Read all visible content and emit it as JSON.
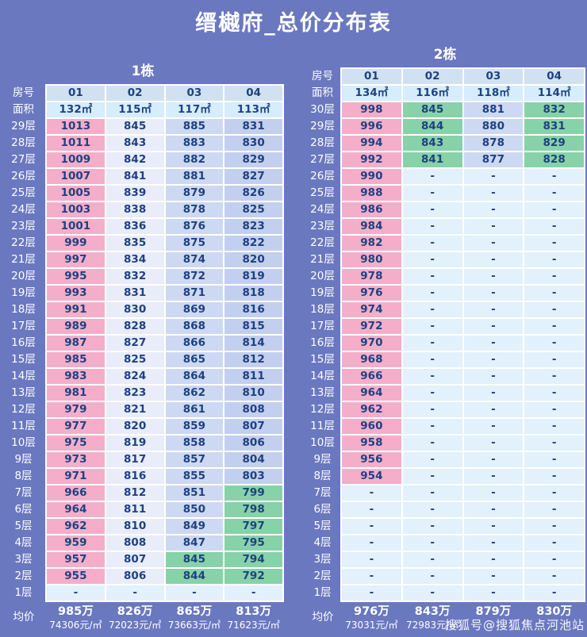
{
  "page": {
    "title": "缙樾府_总价分布表",
    "watermark": "搜狐号@搜狐焦点河池站"
  },
  "labels": {
    "room": "房号",
    "area": "面积",
    "avg": "均价"
  },
  "ui_colors": {
    "background": "#6a78c0",
    "header_cell": "#d0e1f1",
    "area_cell": "#d5edfc",
    "cell_text": "#1e4180",
    "label_text": "#ffffff",
    "grid_line": "#ffffff"
  },
  "cell_colors": {
    "p": "#f4aeca",
    "w": "#e9ecf9",
    "b": "#cdd8f2",
    "d": "#c3cfee",
    "g": "#87d2a8",
    "e": "#e2f1fb"
  },
  "chart_data": [
    {
      "type": "table",
      "title": "1栋",
      "units": [
        "01",
        "02",
        "03",
        "04"
      ],
      "areas": [
        "132㎡",
        "115㎡",
        "117㎡",
        "113㎡"
      ],
      "floors": [
        {
          "floor": "29层",
          "values": [
            "1013",
            "845",
            "885",
            "831"
          ],
          "colors": [
            "p",
            "w",
            "b",
            "d"
          ]
        },
        {
          "floor": "28层",
          "values": [
            "1011",
            "843",
            "883",
            "830"
          ],
          "colors": [
            "p",
            "w",
            "b",
            "d"
          ]
        },
        {
          "floor": "27层",
          "values": [
            "1009",
            "842",
            "882",
            "829"
          ],
          "colors": [
            "p",
            "w",
            "b",
            "d"
          ]
        },
        {
          "floor": "26层",
          "values": [
            "1007",
            "841",
            "881",
            "827"
          ],
          "colors": [
            "p",
            "w",
            "b",
            "d"
          ]
        },
        {
          "floor": "25层",
          "values": [
            "1005",
            "839",
            "879",
            "826"
          ],
          "colors": [
            "p",
            "w",
            "b",
            "d"
          ]
        },
        {
          "floor": "24层",
          "values": [
            "1003",
            "838",
            "878",
            "825"
          ],
          "colors": [
            "p",
            "w",
            "b",
            "d"
          ]
        },
        {
          "floor": "23层",
          "values": [
            "1001",
            "836",
            "876",
            "823"
          ],
          "colors": [
            "p",
            "w",
            "b",
            "d"
          ]
        },
        {
          "floor": "22层",
          "values": [
            "999",
            "835",
            "875",
            "822"
          ],
          "colors": [
            "p",
            "w",
            "b",
            "d"
          ]
        },
        {
          "floor": "21层",
          "values": [
            "997",
            "834",
            "874",
            "820"
          ],
          "colors": [
            "p",
            "w",
            "b",
            "d"
          ]
        },
        {
          "floor": "20层",
          "values": [
            "995",
            "832",
            "872",
            "819"
          ],
          "colors": [
            "p",
            "w",
            "b",
            "d"
          ]
        },
        {
          "floor": "19层",
          "values": [
            "993",
            "831",
            "871",
            "818"
          ],
          "colors": [
            "p",
            "w",
            "b",
            "d"
          ]
        },
        {
          "floor": "18层",
          "values": [
            "991",
            "830",
            "869",
            "816"
          ],
          "colors": [
            "p",
            "w",
            "b",
            "d"
          ]
        },
        {
          "floor": "17层",
          "values": [
            "989",
            "828",
            "868",
            "815"
          ],
          "colors": [
            "p",
            "w",
            "b",
            "d"
          ]
        },
        {
          "floor": "16层",
          "values": [
            "987",
            "827",
            "866",
            "814"
          ],
          "colors": [
            "p",
            "w",
            "b",
            "d"
          ]
        },
        {
          "floor": "15层",
          "values": [
            "985",
            "825",
            "865",
            "812"
          ],
          "colors": [
            "p",
            "w",
            "b",
            "d"
          ]
        },
        {
          "floor": "14层",
          "values": [
            "983",
            "824",
            "864",
            "811"
          ],
          "colors": [
            "p",
            "w",
            "b",
            "d"
          ]
        },
        {
          "floor": "13层",
          "values": [
            "981",
            "823",
            "862",
            "810"
          ],
          "colors": [
            "p",
            "w",
            "b",
            "d"
          ]
        },
        {
          "floor": "12层",
          "values": [
            "979",
            "821",
            "861",
            "808"
          ],
          "colors": [
            "p",
            "w",
            "b",
            "d"
          ]
        },
        {
          "floor": "11层",
          "values": [
            "977",
            "820",
            "859",
            "807"
          ],
          "colors": [
            "p",
            "w",
            "b",
            "d"
          ]
        },
        {
          "floor": "10层",
          "values": [
            "975",
            "819",
            "858",
            "806"
          ],
          "colors": [
            "p",
            "w",
            "b",
            "d"
          ]
        },
        {
          "floor": "9层",
          "values": [
            "973",
            "817",
            "857",
            "804"
          ],
          "colors": [
            "p",
            "w",
            "b",
            "d"
          ]
        },
        {
          "floor": "8层",
          "values": [
            "971",
            "816",
            "855",
            "803"
          ],
          "colors": [
            "p",
            "w",
            "b",
            "d"
          ]
        },
        {
          "floor": "7层",
          "values": [
            "966",
            "812",
            "851",
            "799"
          ],
          "colors": [
            "p",
            "w",
            "b",
            "g"
          ]
        },
        {
          "floor": "6层",
          "values": [
            "964",
            "811",
            "850",
            "798"
          ],
          "colors": [
            "p",
            "w",
            "b",
            "g"
          ]
        },
        {
          "floor": "5层",
          "values": [
            "962",
            "810",
            "849",
            "797"
          ],
          "colors": [
            "p",
            "w",
            "b",
            "g"
          ]
        },
        {
          "floor": "4层",
          "values": [
            "959",
            "808",
            "847",
            "795"
          ],
          "colors": [
            "p",
            "w",
            "b",
            "g"
          ]
        },
        {
          "floor": "3层",
          "values": [
            "957",
            "807",
            "845",
            "794"
          ],
          "colors": [
            "p",
            "w",
            "g",
            "g"
          ]
        },
        {
          "floor": "2层",
          "values": [
            "955",
            "806",
            "844",
            "792"
          ],
          "colors": [
            "p",
            "w",
            "g",
            "g"
          ]
        },
        {
          "floor": "1层",
          "values": [
            "-",
            "-",
            "-",
            "-"
          ],
          "colors": [
            "e",
            "e",
            "e",
            "e"
          ]
        }
      ],
      "averages": [
        {
          "total": "985万",
          "unit_price": "74306元/㎡"
        },
        {
          "total": "826万",
          "unit_price": "72023元/㎡"
        },
        {
          "total": "865万",
          "unit_price": "73663元/㎡"
        },
        {
          "total": "813万",
          "unit_price": "71623元/㎡"
        }
      ]
    },
    {
      "type": "table",
      "title": "2栋",
      "units": [
        "01",
        "02",
        "03",
        "04"
      ],
      "areas": [
        "134㎡",
        "116㎡",
        "118㎡",
        "114㎡"
      ],
      "floors": [
        {
          "floor": "30层",
          "values": [
            "998",
            "845",
            "881",
            "832"
          ],
          "colors": [
            "p",
            "g",
            "b",
            "g"
          ]
        },
        {
          "floor": "29层",
          "values": [
            "996",
            "844",
            "880",
            "831"
          ],
          "colors": [
            "p",
            "g",
            "b",
            "g"
          ]
        },
        {
          "floor": "28层",
          "values": [
            "994",
            "843",
            "878",
            "829"
          ],
          "colors": [
            "p",
            "g",
            "b",
            "g"
          ]
        },
        {
          "floor": "27层",
          "values": [
            "992",
            "841",
            "877",
            "828"
          ],
          "colors": [
            "p",
            "g",
            "b",
            "g"
          ]
        },
        {
          "floor": "26层",
          "values": [
            "990",
            "-",
            "-",
            "-"
          ],
          "colors": [
            "p",
            "e",
            "e",
            "e"
          ]
        },
        {
          "floor": "25层",
          "values": [
            "988",
            "-",
            "-",
            "-"
          ],
          "colors": [
            "p",
            "e",
            "e",
            "e"
          ]
        },
        {
          "floor": "24层",
          "values": [
            "986",
            "-",
            "-",
            "-"
          ],
          "colors": [
            "p",
            "e",
            "e",
            "e"
          ]
        },
        {
          "floor": "23层",
          "values": [
            "984",
            "-",
            "-",
            "-"
          ],
          "colors": [
            "p",
            "e",
            "e",
            "e"
          ]
        },
        {
          "floor": "22层",
          "values": [
            "982",
            "-",
            "-",
            "-"
          ],
          "colors": [
            "p",
            "e",
            "e",
            "e"
          ]
        },
        {
          "floor": "21层",
          "values": [
            "980",
            "-",
            "-",
            "-"
          ],
          "colors": [
            "p",
            "e",
            "e",
            "e"
          ]
        },
        {
          "floor": "20层",
          "values": [
            "978",
            "-",
            "-",
            "-"
          ],
          "colors": [
            "p",
            "e",
            "e",
            "e"
          ]
        },
        {
          "floor": "19层",
          "values": [
            "976",
            "-",
            "-",
            "-"
          ],
          "colors": [
            "p",
            "e",
            "e",
            "e"
          ]
        },
        {
          "floor": "18层",
          "values": [
            "974",
            "-",
            "-",
            "-"
          ],
          "colors": [
            "p",
            "e",
            "e",
            "e"
          ]
        },
        {
          "floor": "17层",
          "values": [
            "972",
            "-",
            "-",
            "-"
          ],
          "colors": [
            "p",
            "e",
            "e",
            "e"
          ]
        },
        {
          "floor": "16层",
          "values": [
            "970",
            "-",
            "-",
            "-"
          ],
          "colors": [
            "p",
            "e",
            "e",
            "e"
          ]
        },
        {
          "floor": "15层",
          "values": [
            "968",
            "-",
            "-",
            "-"
          ],
          "colors": [
            "p",
            "e",
            "e",
            "e"
          ]
        },
        {
          "floor": "14层",
          "values": [
            "966",
            "-",
            "-",
            "-"
          ],
          "colors": [
            "p",
            "e",
            "e",
            "e"
          ]
        },
        {
          "floor": "13层",
          "values": [
            "964",
            "-",
            "-",
            "-"
          ],
          "colors": [
            "p",
            "e",
            "e",
            "e"
          ]
        },
        {
          "floor": "12层",
          "values": [
            "962",
            "-",
            "-",
            "-"
          ],
          "colors": [
            "p",
            "e",
            "e",
            "e"
          ]
        },
        {
          "floor": "11层",
          "values": [
            "960",
            "-",
            "-",
            "-"
          ],
          "colors": [
            "p",
            "e",
            "e",
            "e"
          ]
        },
        {
          "floor": "10层",
          "values": [
            "958",
            "-",
            "-",
            "-"
          ],
          "colors": [
            "p",
            "e",
            "e",
            "e"
          ]
        },
        {
          "floor": "9层",
          "values": [
            "956",
            "-",
            "-",
            "-"
          ],
          "colors": [
            "p",
            "e",
            "e",
            "e"
          ]
        },
        {
          "floor": "8层",
          "values": [
            "954",
            "-",
            "-",
            "-"
          ],
          "colors": [
            "p",
            "e",
            "e",
            "e"
          ]
        },
        {
          "floor": "7层",
          "values": [
            "-",
            "-",
            "-",
            "-"
          ],
          "colors": [
            "e",
            "e",
            "e",
            "e"
          ]
        },
        {
          "floor": "6层",
          "values": [
            "-",
            "-",
            "-",
            "-"
          ],
          "colors": [
            "e",
            "e",
            "e",
            "e"
          ]
        },
        {
          "floor": "5层",
          "values": [
            "-",
            "-",
            "-",
            "-"
          ],
          "colors": [
            "e",
            "e",
            "e",
            "e"
          ]
        },
        {
          "floor": "4层",
          "values": [
            "-",
            "-",
            "-",
            "-"
          ],
          "colors": [
            "e",
            "e",
            "e",
            "e"
          ]
        },
        {
          "floor": "3层",
          "values": [
            "-",
            "-",
            "-",
            "-"
          ],
          "colors": [
            "e",
            "e",
            "e",
            "e"
          ]
        },
        {
          "floor": "2层",
          "values": [
            "-",
            "-",
            "-",
            "-"
          ],
          "colors": [
            "e",
            "e",
            "e",
            "e"
          ]
        },
        {
          "floor": "1层",
          "values": [
            "-",
            "-",
            "-",
            "-"
          ],
          "colors": [
            "e",
            "e",
            "e",
            "e"
          ]
        }
      ],
      "averages": [
        {
          "total": "976万",
          "unit_price": "73031元/㎡"
        },
        {
          "total": "843万",
          "unit_price": "72983元/㎡"
        },
        {
          "total": "879万",
          "unit_price": ""
        },
        {
          "total": "830万",
          "unit_price": ""
        }
      ]
    }
  ]
}
